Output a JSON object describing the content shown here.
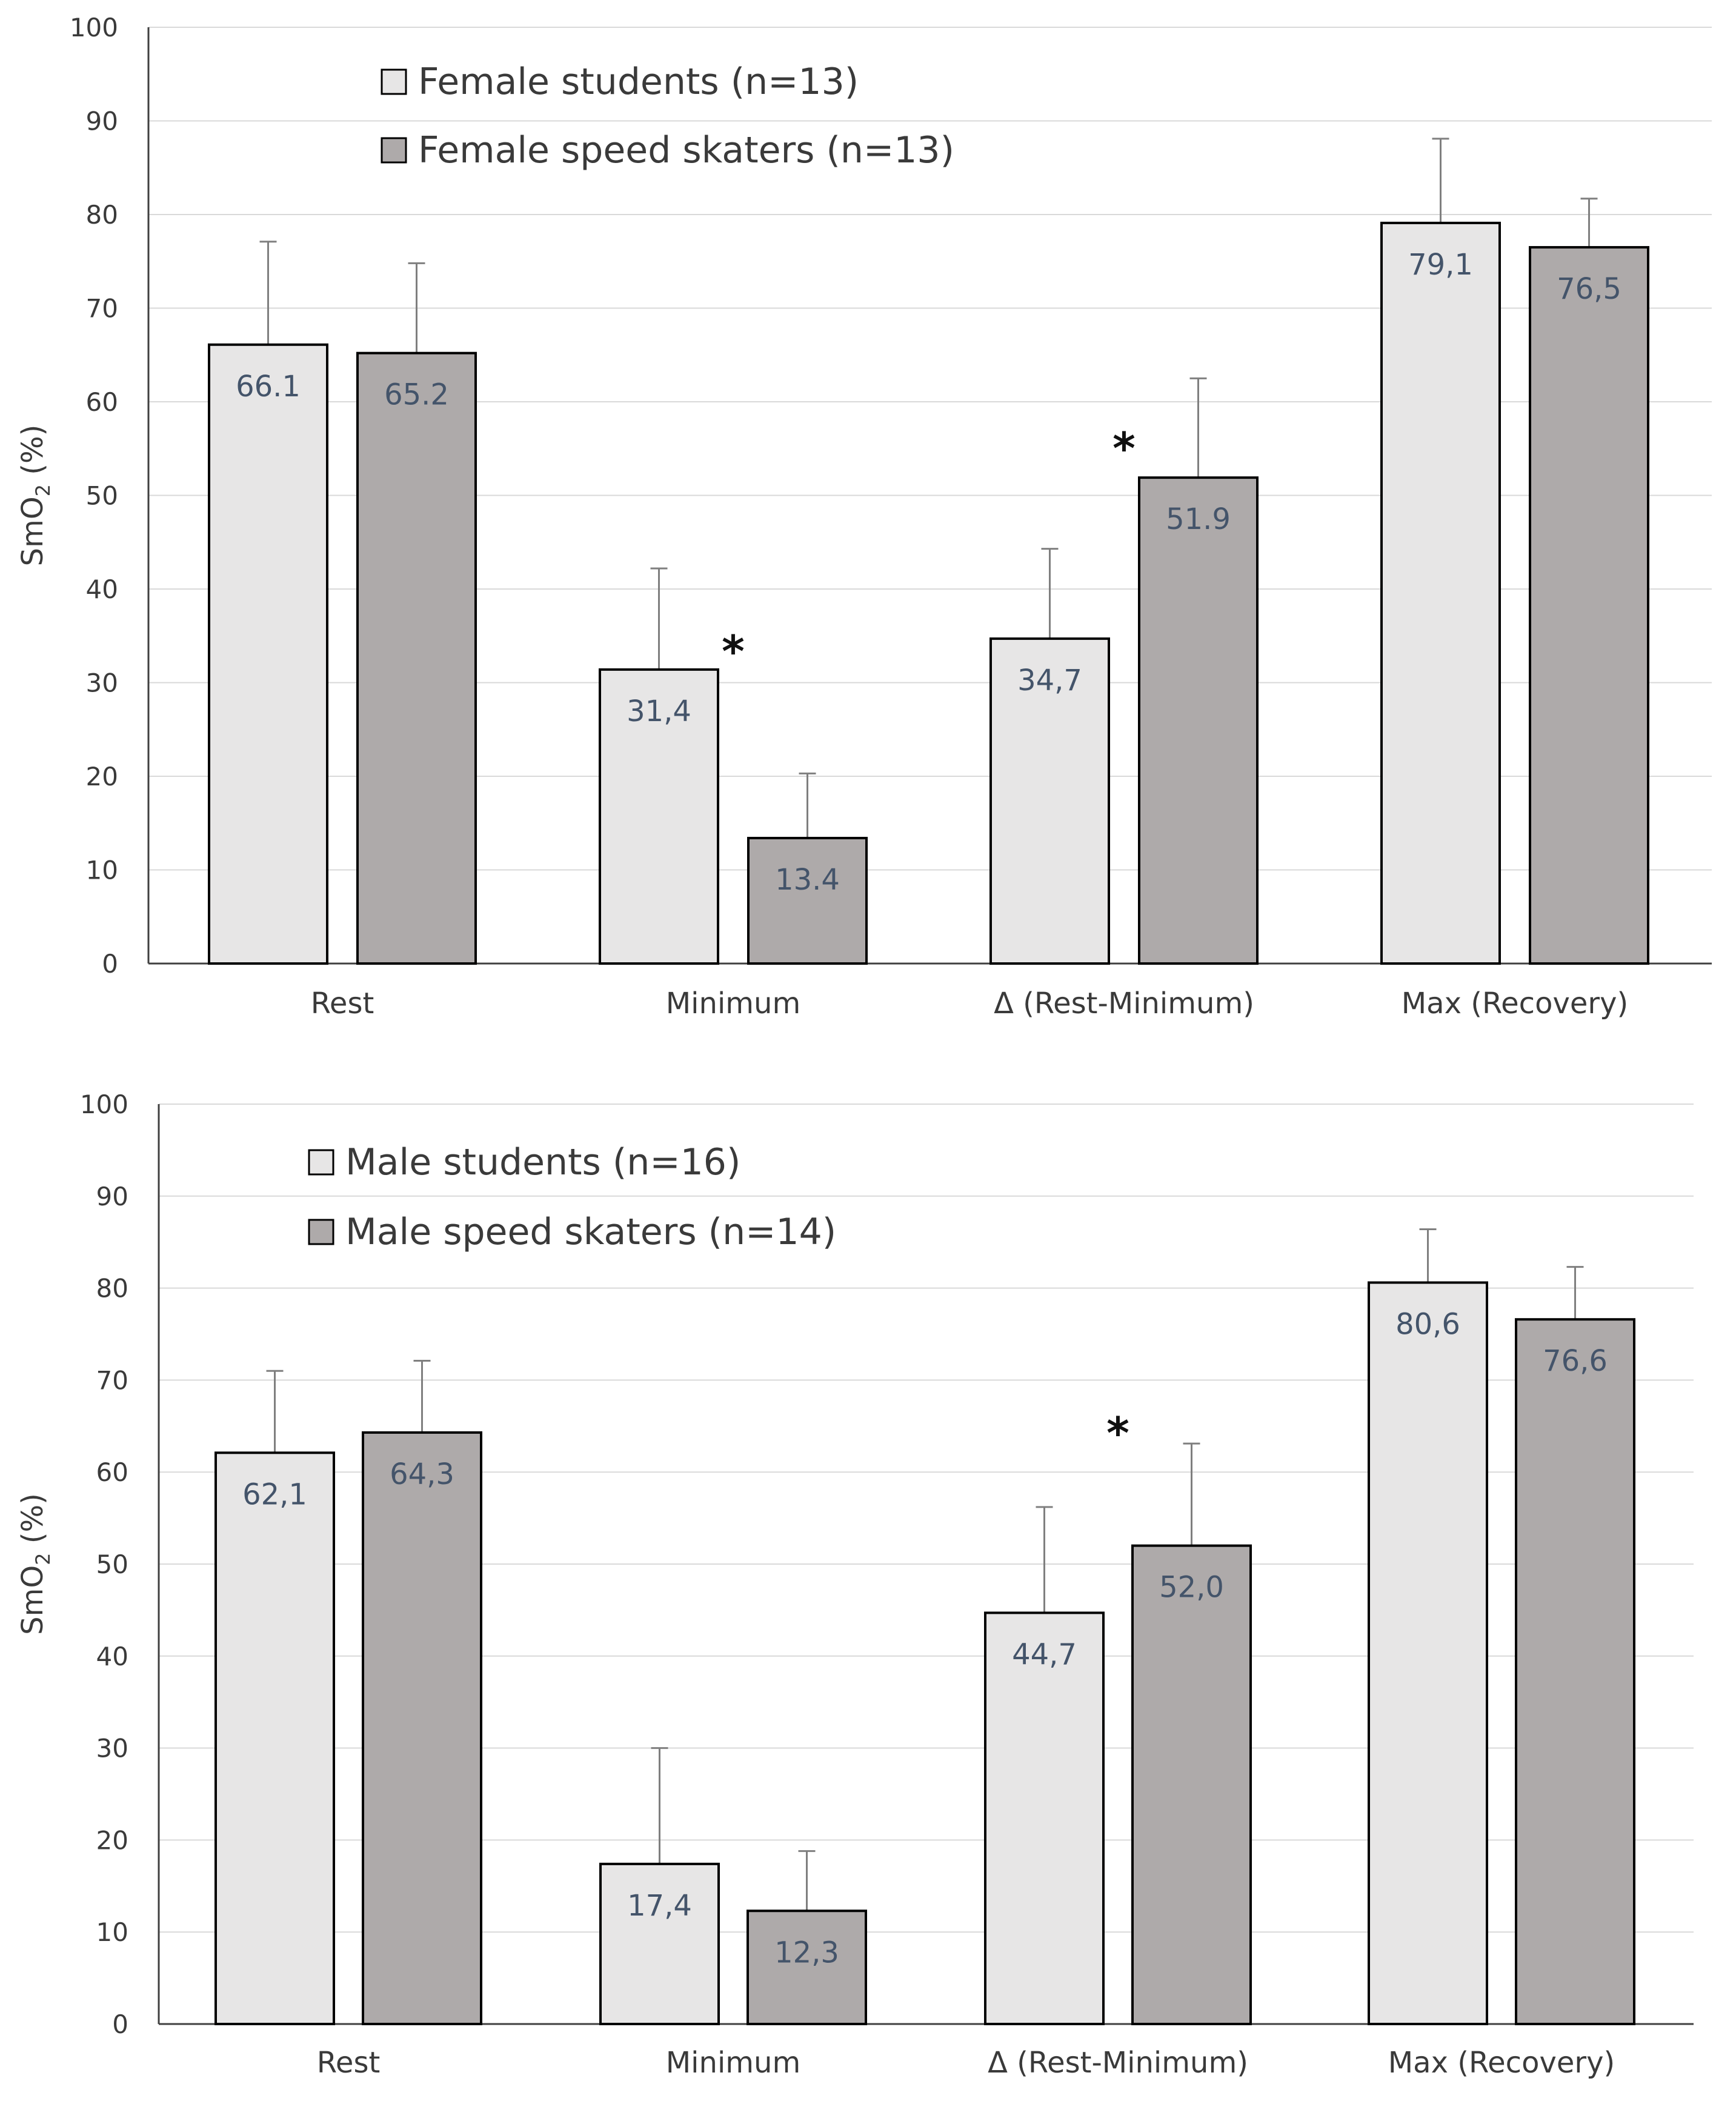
{
  "chart_data": [
    {
      "type": "bar",
      "title": "",
      "xlabel": "",
      "ylabel": "SmO2 (%)",
      "ylabel_main": "SmO",
      "ylabel_sub": "2",
      "ylabel_suffix": " (%)",
      "ylim": [
        0,
        100
      ],
      "yticks": [
        0,
        10,
        20,
        30,
        40,
        50,
        60,
        70,
        80,
        90,
        100
      ],
      "grid": true,
      "legend_position": "top-left",
      "categories": [
        "Rest",
        "Minimum",
        "Δ (Rest-Minimum)",
        "Max (Recovery)"
      ],
      "series": [
        {
          "name": "Female students (n=13)",
          "color": "#e7e6e6",
          "values": [
            66.1,
            31.4,
            34.7,
            79.1
          ],
          "value_labels": [
            "66.1",
            "31,4",
            "34,7",
            "79,1"
          ],
          "error": [
            11.0,
            10.8,
            9.6,
            9.0
          ]
        },
        {
          "name": "Female speed skaters (n=13)",
          "color": "#aeaaaa",
          "values": [
            65.2,
            13.4,
            51.9,
            76.5
          ],
          "value_labels": [
            "65.2",
            "13.4",
            "51.9",
            "76,5"
          ],
          "error": [
            9.6,
            6.9,
            10.6,
            5.2
          ]
        }
      ],
      "significance": [
        {
          "category_index": 1,
          "label": "*"
        },
        {
          "category_index": 2,
          "label": "*"
        }
      ]
    },
    {
      "type": "bar",
      "title": "",
      "xlabel": "",
      "ylabel": "SmO2 (%)",
      "ylabel_main": "SmO",
      "ylabel_sub": "2",
      "ylabel_suffix": " (%)",
      "ylim": [
        0,
        100
      ],
      "yticks": [
        0,
        10,
        20,
        30,
        40,
        50,
        60,
        70,
        80,
        90,
        100
      ],
      "grid": true,
      "legend_position": "top-left",
      "categories": [
        "Rest",
        "Minimum",
        "Δ (Rest-Minimum)",
        "Max (Recovery)"
      ],
      "series": [
        {
          "name": "Male students (n=16)",
          "color": "#e7e6e6",
          "values": [
            62.1,
            17.4,
            44.7,
            80.6
          ],
          "value_labels": [
            "62,1",
            "17,4",
            "44,7",
            "80,6"
          ],
          "error": [
            8.9,
            12.6,
            11.5,
            5.8
          ]
        },
        {
          "name": "Male speed skaters (n=14)",
          "color": "#aeaaaa",
          "values": [
            64.3,
            12.3,
            52.0,
            76.6
          ],
          "value_labels": [
            "64,3",
            "12,3",
            "52,0",
            "76,6"
          ],
          "error": [
            7.8,
            6.5,
            11.1,
            5.7
          ]
        }
      ],
      "significance": [
        {
          "category_index": 2,
          "label": "*"
        }
      ]
    }
  ]
}
